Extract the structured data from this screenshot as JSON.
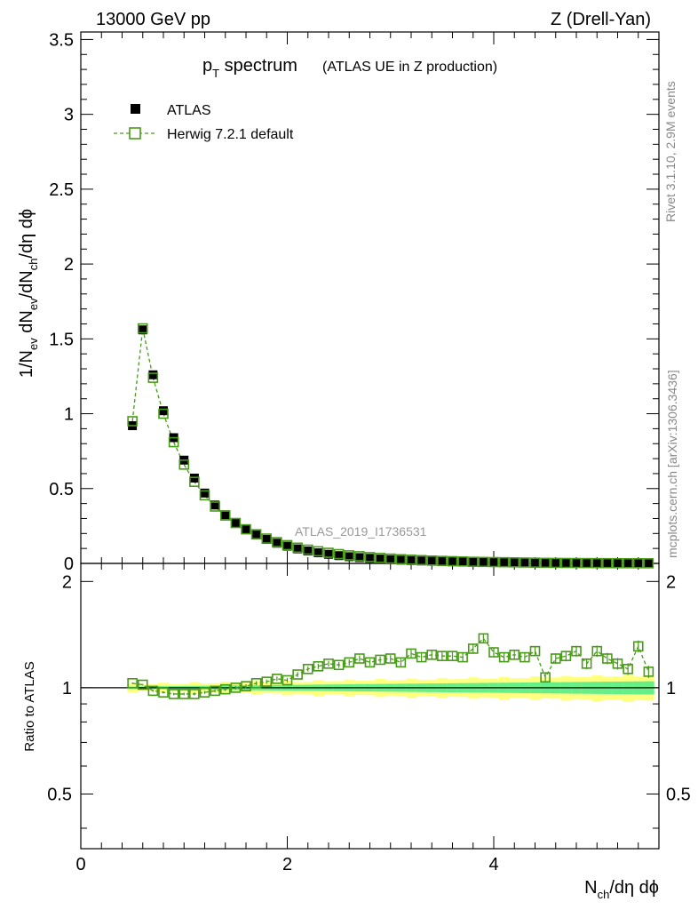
{
  "header": {
    "left": "13000 GeV pp",
    "right": "Z (Drell-Yan)"
  },
  "title": {
    "main": "p",
    "main_sub": "T",
    "main_rest": " spectrum",
    "small": "(ATLAS UE in Z production)"
  },
  "side_labels": {
    "rivet": "Rivet 3.1.10,  2.9M events",
    "mcplots": "mcplots.cern.ch [arXiv:1306.3436]"
  },
  "watermark": "ATLAS_2019_I1736531",
  "axes": {
    "ylabel_main": "1/N_ev dN_ev/dN_ch/dη dϕ",
    "ylabel_ratio": "Ratio to ATLAS",
    "xlabel": "N_ch/dη dϕ",
    "main_ylim": [
      0,
      3.55
    ],
    "ratio_ylim": [
      0.35,
      2.25
    ],
    "xlim": [
      0,
      5.6
    ],
    "main_yticks": [
      "0",
      "0.5",
      "1",
      "1.5",
      "2",
      "2.5",
      "3",
      "3.5"
    ],
    "ratio_yticks": [
      "0.5",
      "1",
      "2"
    ],
    "xticks": [
      "0",
      "2",
      "4"
    ]
  },
  "legend": {
    "data_label": "ATLAS",
    "mc_label": "Herwig 7.2.1 default"
  },
  "colors": {
    "data": "#000000",
    "mc": "#4a9a1a",
    "band_outer": "#ffff80",
    "band_inner": "#66ee88"
  },
  "chart_data": {
    "type": "scatter",
    "title": "pT spectrum (ATLAS UE in Z production)",
    "xlabel": "N_ch/dη dϕ",
    "ylabel": "1/N_ev dN_ev/dN_ch/dη dϕ",
    "x": [
      0.5,
      0.6,
      0.7,
      0.8,
      0.9,
      1.0,
      1.1,
      1.2,
      1.3,
      1.4,
      1.5,
      1.6,
      1.7,
      1.8,
      1.9,
      2.0,
      2.1,
      2.2,
      2.3,
      2.4,
      2.5,
      2.6,
      2.7,
      2.8,
      2.9,
      3.0,
      3.1,
      3.2,
      3.3,
      3.4,
      3.5,
      3.6,
      3.7,
      3.8,
      3.9,
      4.0,
      4.1,
      4.2,
      4.3,
      4.4,
      4.5,
      4.6,
      4.7,
      4.8,
      4.9,
      5.0,
      5.1,
      5.2,
      5.3,
      5.4,
      5.5
    ],
    "series": [
      {
        "name": "ATLAS",
        "values": [
          0.92,
          1.56,
          1.26,
          1.02,
          0.84,
          0.69,
          0.57,
          0.47,
          0.39,
          0.325,
          0.27,
          0.225,
          0.19,
          0.16,
          0.135,
          0.115,
          0.097,
          0.083,
          0.071,
          0.061,
          0.052,
          0.045,
          0.039,
          0.034,
          0.029,
          0.025,
          0.022,
          0.019,
          0.0165,
          0.0144,
          0.0125,
          0.0109,
          0.0095,
          0.0083,
          0.0072,
          0.0063,
          0.0055,
          0.0048,
          0.0042,
          0.0036,
          0.0032,
          0.0028,
          0.0024,
          0.0021,
          0.0018,
          0.0016,
          0.0014,
          0.0012,
          0.001,
          0.0009,
          0.0008
        ]
      },
      {
        "name": "Herwig 7.2.1 default",
        "values": [
          0.95,
          1.57,
          1.24,
          1.0,
          0.81,
          0.66,
          0.545,
          0.455,
          0.38,
          0.32,
          0.27,
          0.228,
          0.195,
          0.166,
          0.142,
          0.122,
          0.105,
          0.092,
          0.081,
          0.071,
          0.062,
          0.054,
          0.048,
          0.042,
          0.037,
          0.032,
          0.028,
          0.025,
          0.022,
          0.019,
          0.017,
          0.015,
          0.013,
          0.011,
          0.01,
          0.009,
          0.008,
          0.007,
          0.006,
          0.005,
          0.004,
          0.0035,
          0.003,
          0.0027,
          0.0023,
          0.002,
          0.0018,
          0.0015,
          0.0013,
          0.0011,
          0.001
        ],
        "ratio": [
          1.03,
          1.02,
          0.98,
          0.97,
          0.96,
          0.96,
          0.96,
          0.97,
          0.98,
          0.99,
          1.0,
          1.01,
          1.03,
          1.04,
          1.06,
          1.05,
          1.09,
          1.13,
          1.15,
          1.17,
          1.16,
          1.18,
          1.21,
          1.18,
          1.2,
          1.21,
          1.18,
          1.25,
          1.22,
          1.24,
          1.23,
          1.23,
          1.22,
          1.29,
          1.38,
          1.26,
          1.22,
          1.24,
          1.22,
          1.27,
          1.07,
          1.21,
          1.23,
          1.27,
          1.17,
          1.27,
          1.21,
          1.17,
          1.13,
          1.31,
          1.11
        ]
      }
    ]
  }
}
